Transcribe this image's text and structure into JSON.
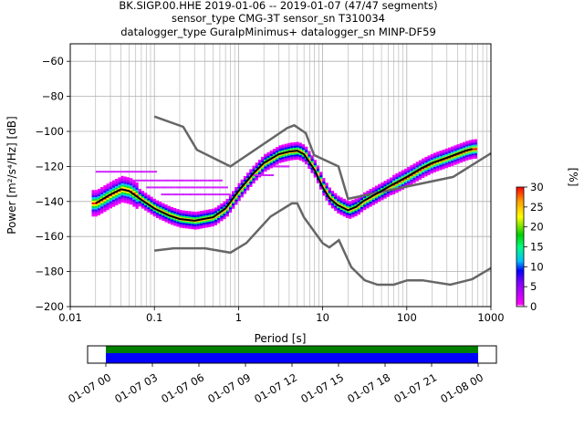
{
  "title_lines": [
    "BK.SIGP.00.HHE   2019-01-06 -- 2019-01-07  (47/47 segments)",
    "sensor_type CMG-3T sensor_sn T310034",
    "datalogger_type GuralpMinimus+ datalogger_sn MINP-DF59"
  ],
  "chart_data": {
    "type": "heatmap",
    "xlabel": "Period [s]",
    "ylabel": "Power [m²/s⁴/Hz] [dB]",
    "xscale": "log",
    "xlim": [
      0.01,
      1000
    ],
    "ylim": [
      -200,
      -50
    ],
    "x_ticks": [
      0.01,
      0.1,
      1,
      10,
      100,
      1000
    ],
    "x_tick_labels": [
      "0.01",
      "0.1",
      "1",
      "10",
      "100",
      "1000"
    ],
    "y_ticks": [
      -200,
      -180,
      -160,
      -140,
      -120,
      -100,
      -80,
      -60
    ],
    "y_tick_labels": [
      "−200",
      "−180",
      "−160",
      "−140",
      "−120",
      "−100",
      "−80",
      "−60"
    ],
    "grid": true,
    "colorbar": {
      "label": "[%]",
      "range": [
        0,
        30
      ],
      "ticks": [
        0,
        5,
        10,
        15,
        20,
        25,
        30
      ],
      "tick_labels": [
        "0",
        "5",
        "10",
        "15",
        "20",
        "25",
        "30"
      ],
      "colormap": "pqlx"
    },
    "noise_models": [
      {
        "name": "NHNM",
        "color": "#666666",
        "x": [
          0.1,
          0.22,
          0.32,
          0.8,
          3.8,
          4.6,
          6.3,
          7.9,
          15.4,
          20,
          354.8,
          1000
        ],
        "y": [
          -91.5,
          -97.4,
          -110.5,
          -120.0,
          -98.0,
          -96.5,
          -101.0,
          -113.5,
          -120.0,
          -138.5,
          -126.0,
          -112.5
        ]
      },
      {
        "name": "NLNM",
        "color": "#666666",
        "x": [
          0.1,
          0.17,
          0.4,
          0.8,
          1.24,
          2.4,
          4.3,
          5,
          6,
          10,
          12,
          15.6,
          21.9,
          31.6,
          45,
          70,
          101,
          154,
          328,
          600,
          1000
        ],
        "y": [
          -168.0,
          -166.7,
          -166.7,
          -169.2,
          -163.7,
          -148.6,
          -141.1,
          -141.1,
          -149.0,
          -163.8,
          -166.2,
          -162.1,
          -177.5,
          -185.0,
          -187.5,
          -187.5,
          -185.0,
          -185.0,
          -187.5,
          -184.4,
          -178.0
        ]
      }
    ],
    "mode_curve": {
      "name": "mode",
      "x": [
        0.02,
        0.03,
        0.04,
        0.05,
        0.07,
        0.1,
        0.15,
        0.2,
        0.3,
        0.5,
        0.7,
        1,
        1.5,
        2,
        3,
        4,
        5,
        6,
        8,
        10,
        12,
        15,
        20,
        25,
        30,
        50,
        70,
        100,
        150,
        200,
        300,
        500,
        600
      ],
      "y": [
        -141,
        -136,
        -133,
        -134,
        -139,
        -144,
        -148,
        -150,
        -151,
        -149,
        -144,
        -134,
        -124,
        -118,
        -113,
        -111.5,
        -111,
        -113,
        -122,
        -132,
        -138,
        -142,
        -145,
        -143,
        -140,
        -134,
        -130,
        -126,
        -121,
        -118,
        -115,
        -111,
        -110
      ]
    },
    "spurious_lines": [
      {
        "y": -123,
        "x": [
          0.02,
          0.1
        ]
      },
      {
        "y": -128,
        "x": [
          0.05,
          0.6
        ]
      },
      {
        "y": -132,
        "x": [
          0.08,
          0.7
        ]
      },
      {
        "y": -136,
        "x": [
          0.12,
          0.8
        ]
      },
      {
        "y": -125,
        "x": [
          1.5,
          2.5
        ]
      },
      {
        "y": -120,
        "x": [
          2.5,
          4
        ]
      }
    ]
  },
  "time_axis": {
    "tick_labels": [
      "01-07 00",
      "01-07 03",
      "01-07 06",
      "01-07 09",
      "01-07 12",
      "01-07 15",
      "01-07 18",
      "01-07 21",
      "01-08 00"
    ],
    "coverage_colors": [
      "#008000",
      "#0000ff"
    ]
  }
}
